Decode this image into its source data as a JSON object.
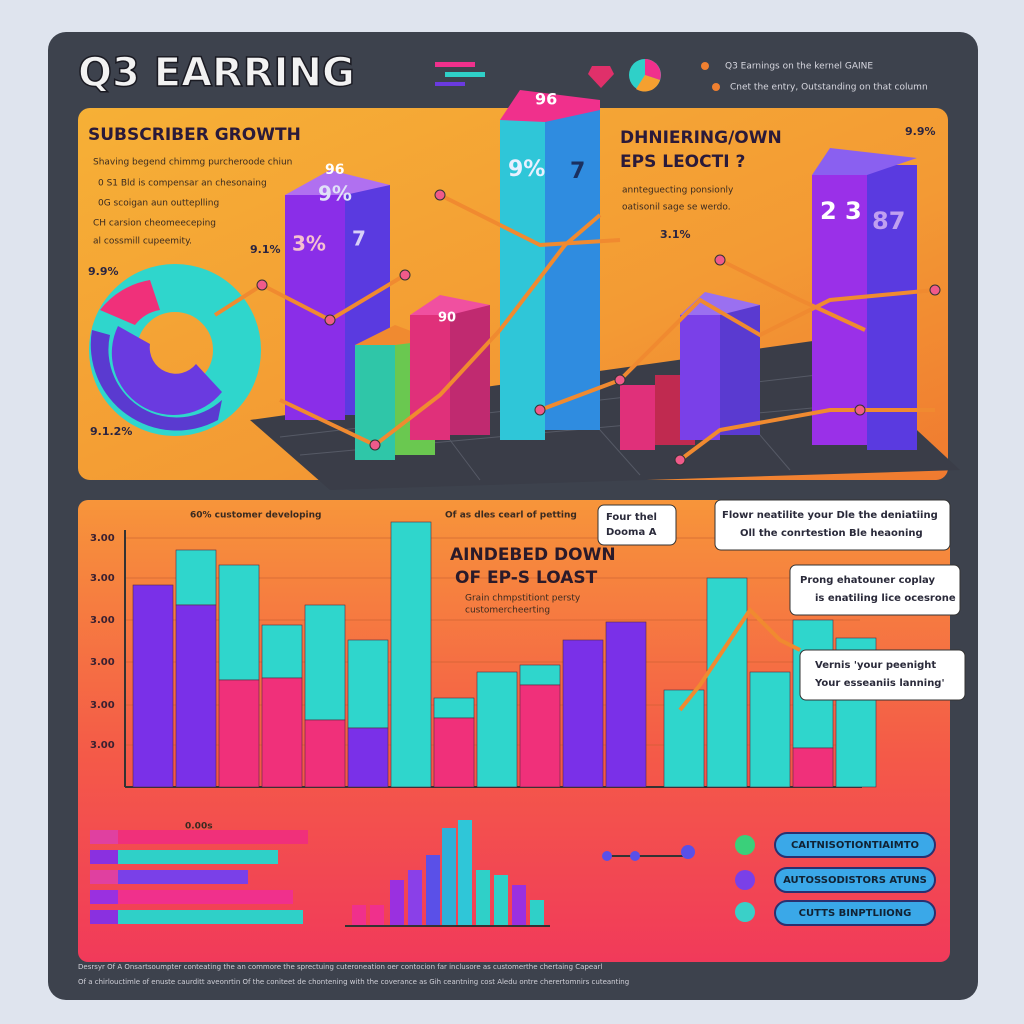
{
  "header": {
    "title": "Q3 EARRING",
    "notes": [
      "Q3 Earnings on the kernel GAINE",
      "Cnet the entry, Outstanding on that column"
    ]
  },
  "top_panel": {
    "left_title": "SUBSCRIBER GROWTH",
    "left_text": [
      "Shaving begend chimmg purcheroode chiun",
      "0 S1 Bld is compensar an chesonaing",
      "0G scoigan aun outteplling",
      "CH carsion cheomeeceping",
      "al cossmill cupeemity."
    ],
    "center_title": [
      "DHNIERING/OWN",
      "EPS LEOCTI ?"
    ],
    "center_text": [
      "annteguecting ponsionly",
      "oatisonil sage se werdo."
    ],
    "labels": [
      "9.9%",
      "9.1%",
      "9.1.2%",
      "3%",
      "9%",
      "7",
      "96",
      "9%",
      "7",
      "3.1%",
      "2 3",
      "87",
      "9.9%",
      "90",
      "96"
    ]
  },
  "bottom_panel": {
    "chart_heads": [
      "60% customer developing",
      "Of as dles cearl of petting"
    ],
    "overlay_title": [
      "AINDEBED DOWN",
      "OF EP-S LOAST"
    ],
    "overlay_text": [
      "Grain chmpstitiont persty",
      "customercheerting"
    ],
    "y_labels": [
      "3.00",
      "3.00",
      "3.00",
      "3.00",
      "3.00",
      "3.00"
    ],
    "callouts": [
      [
        "Four thel",
        "Dooma A"
      ],
      [
        "Flowr neatilite your Dle the deniatiing",
        "Oll the conrtestion Ble heaoning"
      ],
      [
        "Prong ehatouner coplay",
        "is enatiling lice ocesrone"
      ],
      [
        "Vernis 'your peenight",
        "Your esseaniis lanning'"
      ]
    ],
    "buttons": [
      "CAITNISOTIONTIAIMTO",
      "AUTOSSODISTORS ATUNS",
      "CUTTS BINPTLIIONG"
    ],
    "legend_head": "0.00s",
    "footer": [
      "Desrsyr Of A Onsartsoumpter conteating the an commore the sprectuing cuteroneation oer contocion far inclusore as customerthe chertaing Capearl",
      "Of a chirlouctimle of enuste caurditt aveonrtin Of the coniteet de chontening with the coverance as Gih ceantning cost Aledu ontre cherertomnirs cuteanting"
    ]
  }
}
